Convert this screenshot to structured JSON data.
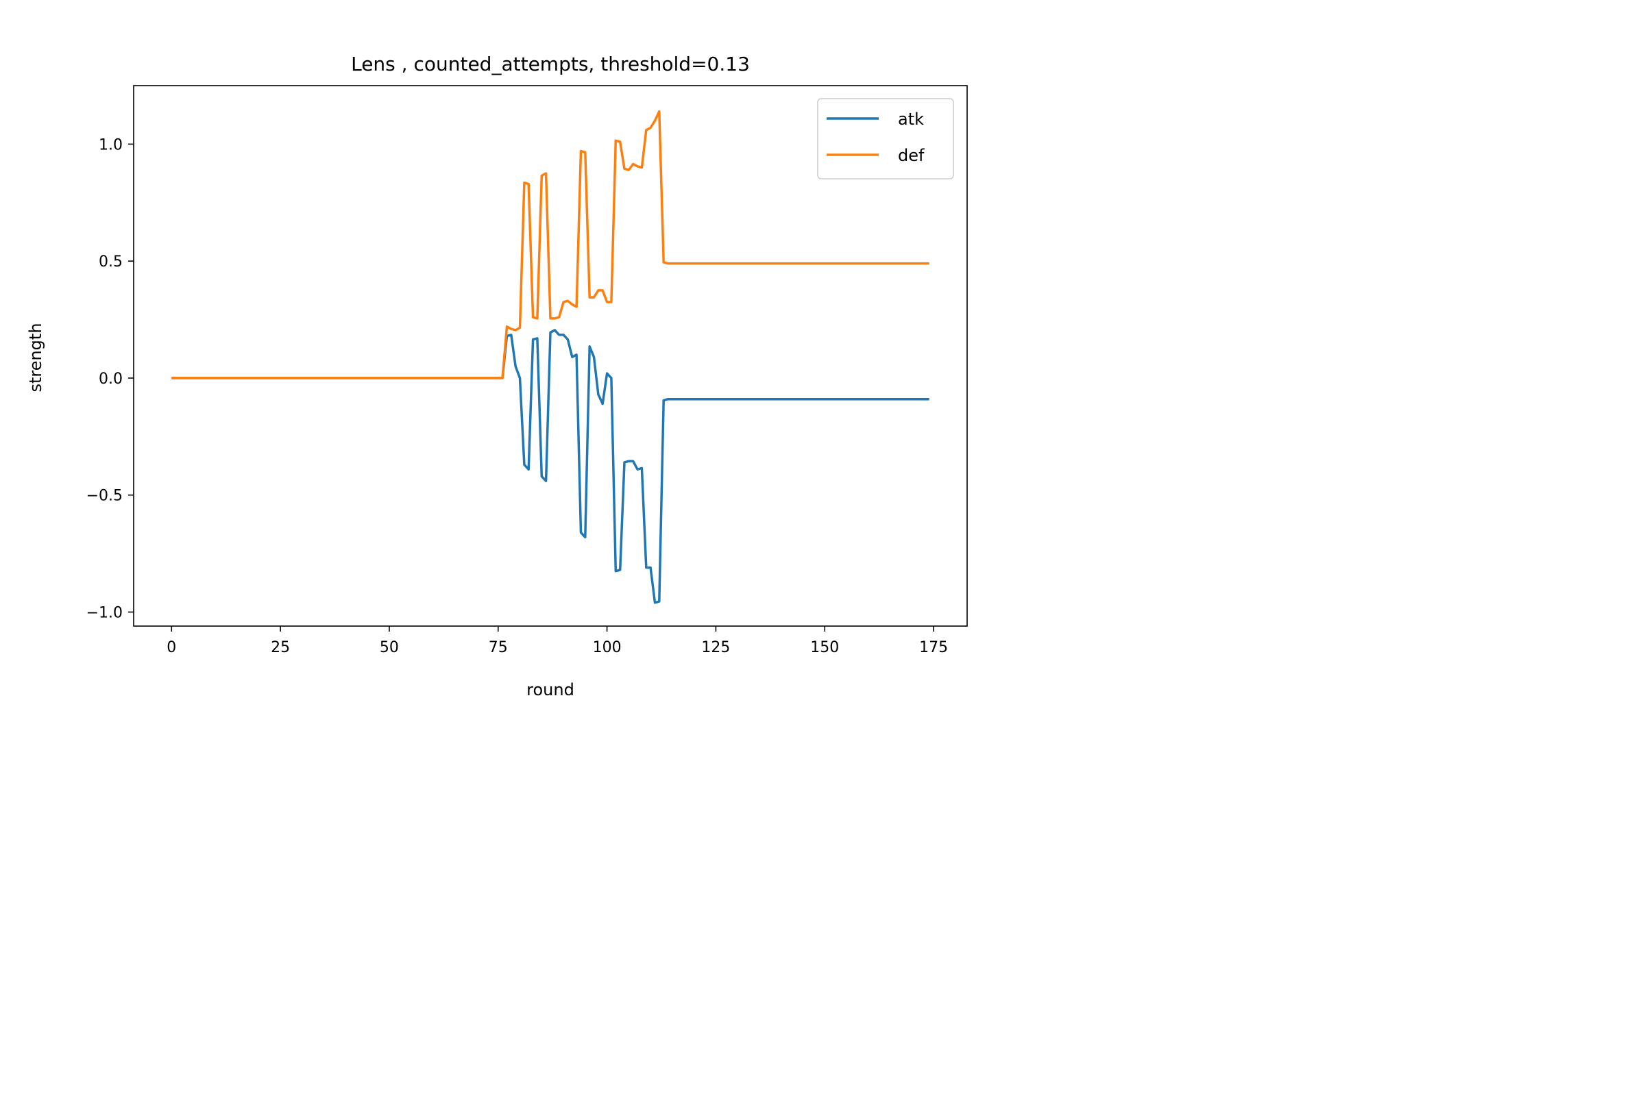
{
  "chart_data": {
    "type": "line",
    "title": "Lens , counted_attempts, threshold=0.13",
    "xlabel": "round",
    "ylabel": "strength",
    "xlim": [
      -8.7,
      182.7
    ],
    "ylim": [
      -1.06,
      1.25
    ],
    "xticks": [
      0,
      25,
      50,
      75,
      100,
      125,
      150,
      175
    ],
    "yticks": [
      -1.0,
      -0.5,
      0.0,
      0.5,
      1.0
    ],
    "ytick_labels": [
      "−1.0",
      "−0.5",
      "0.0",
      "0.5",
      "1.0"
    ],
    "grid": false,
    "legend_position": "top-right",
    "series": [
      {
        "name": "atk",
        "color": "#1f77b4",
        "points": [
          [
            0,
            0
          ],
          [
            76,
            0
          ],
          [
            77,
            0.18
          ],
          [
            78,
            0.185
          ],
          [
            79,
            0.05
          ],
          [
            80,
            0.0
          ],
          [
            81,
            -0.37
          ],
          [
            82,
            -0.39
          ],
          [
            83,
            0.165
          ],
          [
            84,
            0.17
          ],
          [
            85,
            -0.42
          ],
          [
            86,
            -0.44
          ],
          [
            87,
            0.195
          ],
          [
            88,
            0.205
          ],
          [
            89,
            0.185
          ],
          [
            90,
            0.185
          ],
          [
            91,
            0.165
          ],
          [
            92,
            0.09
          ],
          [
            93,
            0.1
          ],
          [
            94,
            -0.66
          ],
          [
            95,
            -0.68
          ],
          [
            96,
            0.135
          ],
          [
            97,
            0.09
          ],
          [
            98,
            -0.07
          ],
          [
            99,
            -0.11
          ],
          [
            100,
            0.02
          ],
          [
            101,
            0.0
          ],
          [
            102,
            -0.825
          ],
          [
            103,
            -0.82
          ],
          [
            104,
            -0.36
          ],
          [
            105,
            -0.355
          ],
          [
            106,
            -0.355
          ],
          [
            107,
            -0.39
          ],
          [
            108,
            -0.385
          ],
          [
            109,
            -0.81
          ],
          [
            110,
            -0.81
          ],
          [
            111,
            -0.96
          ],
          [
            112,
            -0.955
          ],
          [
            113,
            -0.095
          ],
          [
            114,
            -0.09
          ],
          [
            174,
            -0.09
          ]
        ]
      },
      {
        "name": "def",
        "color": "#ff7f0e",
        "points": [
          [
            0,
            0
          ],
          [
            76,
            0
          ],
          [
            77,
            0.22
          ],
          [
            78,
            0.21
          ],
          [
            79,
            0.205
          ],
          [
            80,
            0.215
          ],
          [
            81,
            0.835
          ],
          [
            82,
            0.83
          ],
          [
            83,
            0.26
          ],
          [
            84,
            0.255
          ],
          [
            85,
            0.865
          ],
          [
            86,
            0.875
          ],
          [
            87,
            0.255
          ],
          [
            88,
            0.255
          ],
          [
            89,
            0.26
          ],
          [
            90,
            0.325
          ],
          [
            91,
            0.33
          ],
          [
            92,
            0.315
          ],
          [
            93,
            0.305
          ],
          [
            94,
            0.97
          ],
          [
            95,
            0.965
          ],
          [
            96,
            0.345
          ],
          [
            97,
            0.345
          ],
          [
            98,
            0.375
          ],
          [
            99,
            0.375
          ],
          [
            100,
            0.325
          ],
          [
            101,
            0.325
          ],
          [
            102,
            1.015
          ],
          [
            103,
            1.01
          ],
          [
            104,
            0.895
          ],
          [
            105,
            0.89
          ],
          [
            106,
            0.915
          ],
          [
            107,
            0.905
          ],
          [
            108,
            0.9
          ],
          [
            109,
            1.06
          ],
          [
            110,
            1.07
          ],
          [
            111,
            1.1
          ],
          [
            112,
            1.14
          ],
          [
            113,
            0.495
          ],
          [
            114,
            0.49
          ],
          [
            174,
            0.49
          ]
        ]
      }
    ]
  }
}
